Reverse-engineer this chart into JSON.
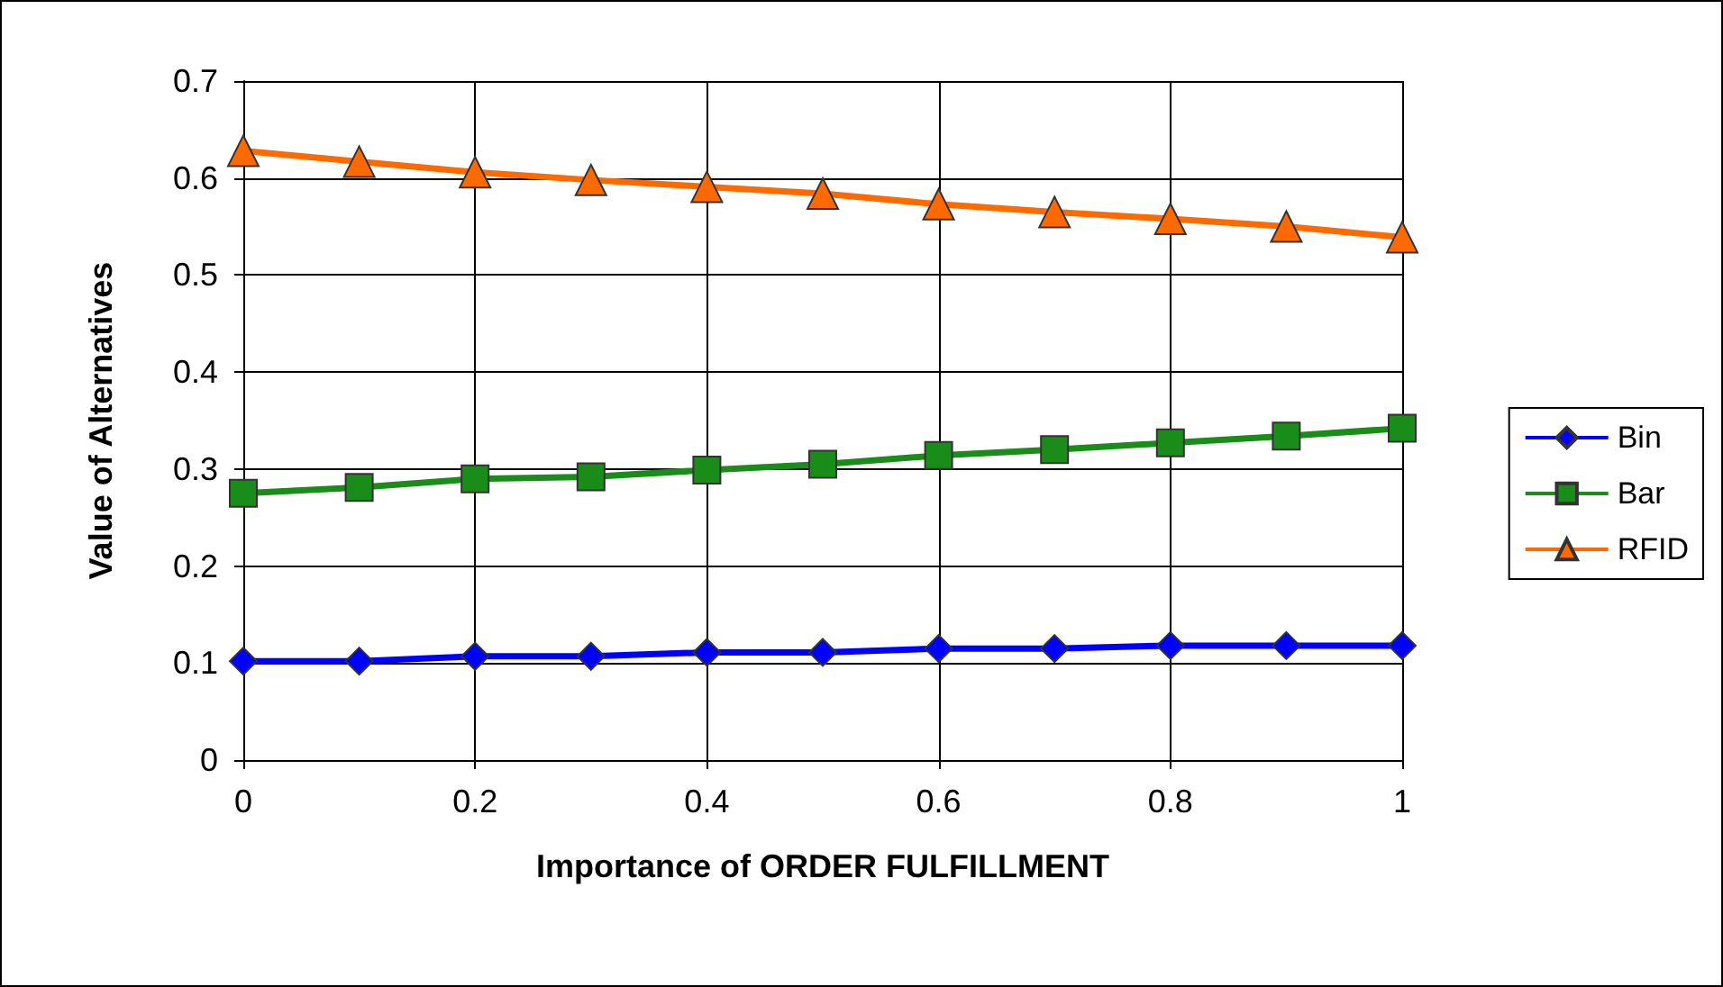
{
  "chart_data": {
    "type": "line",
    "xlabel": "Importance of ORDER FULFILLMENT",
    "ylabel": "Value of Alternatives",
    "x": [
      0,
      0.1,
      0.2,
      0.3,
      0.4,
      0.5,
      0.6,
      0.7,
      0.8,
      0.9,
      1
    ],
    "xlim": [
      0,
      1
    ],
    "xticks": [
      0,
      0.2,
      0.4,
      0.6,
      0.8,
      1
    ],
    "ylim": [
      0,
      0.7
    ],
    "yticks": [
      0,
      0.1,
      0.2,
      0.3,
      0.4,
      0.5,
      0.6,
      0.7
    ],
    "grid": true,
    "legend": "right",
    "line_style": "solid",
    "series": [
      {
        "name": "Bin",
        "color": "#0000ff",
        "marker": "diamond",
        "values": [
          0.102,
          0.102,
          0.107,
          0.107,
          0.111,
          0.111,
          0.115,
          0.115,
          0.118,
          0.118,
          0.118
        ]
      },
      {
        "name": "Bar",
        "color": "#1a8c1a",
        "marker": "square",
        "values": [
          0.275,
          0.281,
          0.29,
          0.292,
          0.299,
          0.305,
          0.314,
          0.32,
          0.327,
          0.334,
          0.342
        ]
      },
      {
        "name": "RFID",
        "color": "#ff6a00",
        "marker": "triangle",
        "values": [
          0.628,
          0.617,
          0.606,
          0.598,
          0.591,
          0.584,
          0.573,
          0.565,
          0.558,
          0.55,
          0.539
        ]
      }
    ]
  }
}
